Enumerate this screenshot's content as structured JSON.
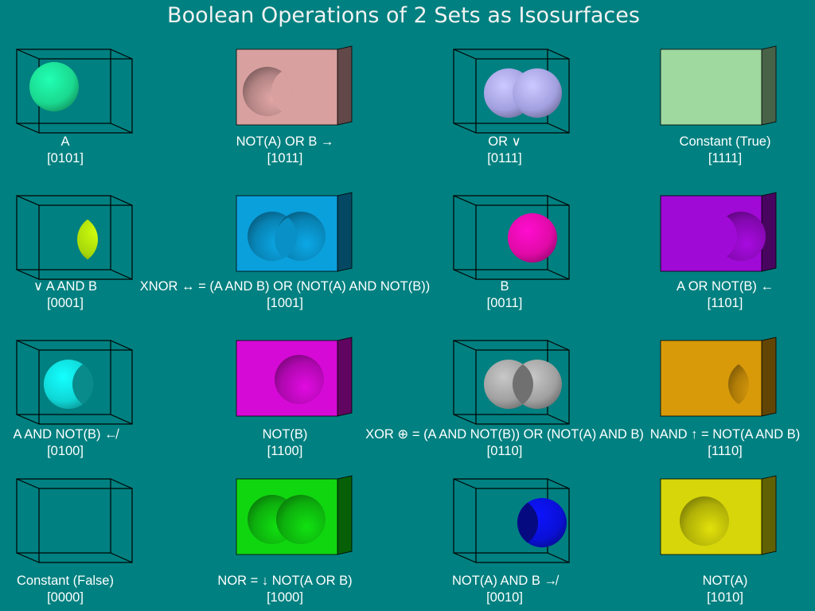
{
  "title": "Boolean Operations of 2 Sets as Isosurfaces",
  "cells": [
    {
      "label": "A",
      "code": "[0101]",
      "box": "wire",
      "shape": "sphereA",
      "color": "#1ad98f"
    },
    {
      "label": "NOT(A) OR B →",
      "code": "[1011]",
      "box": "solid",
      "shape": "crescentCavity",
      "color": "#d9a0a0"
    },
    {
      "label": "OR ∨",
      "code": "[0111]",
      "box": "wire",
      "shape": "union",
      "color": "#a3a0e0"
    },
    {
      "label": "Constant (True)",
      "code": "[1111]",
      "box": "solid",
      "shape": "none",
      "color": "#9fd9a0"
    },
    {
      "label": "∨ A AND B",
      "code": "[0001]",
      "box": "wire",
      "shape": "lens",
      "color": "#a6d60a"
    },
    {
      "label": "XNOR ↔ = (A AND B) OR (NOT(A) AND NOT(B))",
      "code": "[1001]",
      "box": "solid",
      "shape": "xnorCavity",
      "color": "#0aa0dc"
    },
    {
      "label": "B",
      "code": "[0011]",
      "box": "wire",
      "shape": "sphereB",
      "color": "#e00aa6"
    },
    {
      "label": "A OR NOT(B) ←",
      "code": "[1101]",
      "box": "solid",
      "shape": "crescentCavityRight",
      "color": "#a00ad6"
    },
    {
      "label": "A AND NOT(B) ↚",
      "code": "[0100]",
      "box": "wire",
      "shape": "crescentA",
      "color": "#10d6d6"
    },
    {
      "label": "NOT(B)",
      "code": "[1100]",
      "box": "solid",
      "shape": "sphereCavityB",
      "color": "#d60ad6"
    },
    {
      "label": "XOR ⊕ = (A AND NOT(B)) OR (NOT(A) AND B)",
      "code": "[0110]",
      "box": "wire",
      "shape": "xor",
      "color": "#a0a0a0"
    },
    {
      "label": "NAND ↑ = NOT(A AND B)",
      "code": "[1110]",
      "box": "solid",
      "shape": "lensCavity",
      "color": "#d99a0a"
    },
    {
      "label": "Constant (False)",
      "code": "[0000]",
      "box": "wire",
      "shape": "none",
      "color": "#000000"
    },
    {
      "label": "NOR = ↓ NOT(A OR B)",
      "code": "[1000]",
      "box": "solid",
      "shape": "unionCavity",
      "color": "#10d610"
    },
    {
      "label": "NOT(A) AND B ↛",
      "code": "[0010]",
      "box": "wire",
      "shape": "crescentB",
      "color": "#0a10d6"
    },
    {
      "label": "NOT(A)",
      "code": "[1010]",
      "box": "solid",
      "shape": "sphereCavityA",
      "color": "#d6d60a"
    }
  ]
}
